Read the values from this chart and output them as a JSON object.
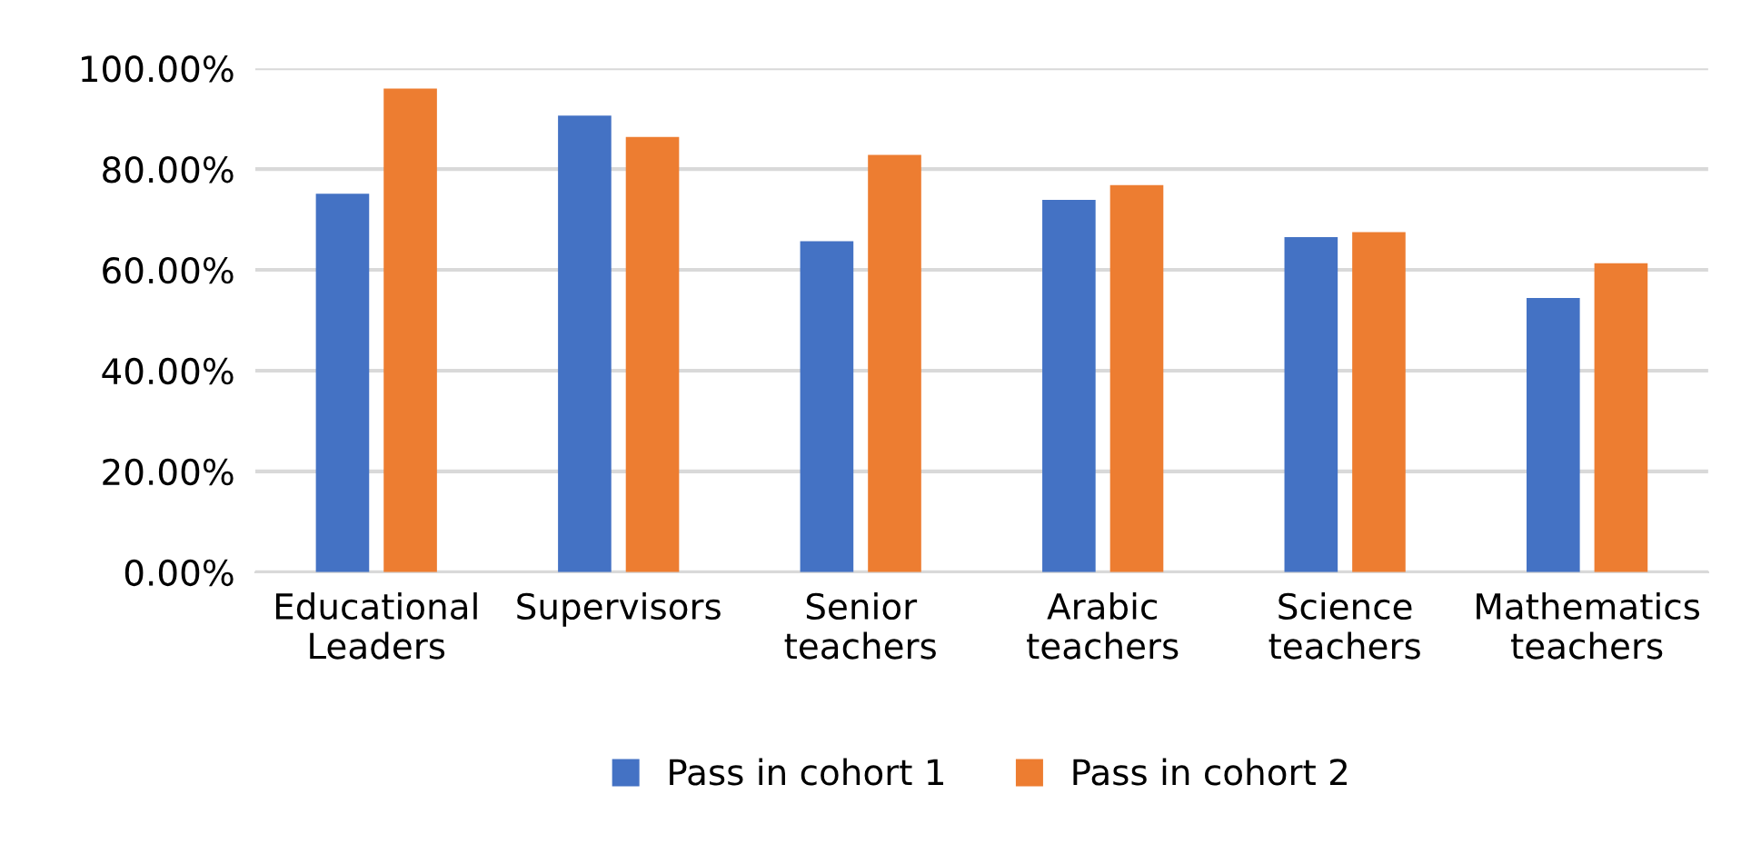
{
  "chart_data": {
    "type": "bar",
    "categories": [
      "Educational\nLeaders",
      "Supervisors",
      "Senior\nteachers",
      "Arabic\nteachers",
      "Science\nteachers",
      "Mathematics\nteachers"
    ],
    "series": [
      {
        "name": "Pass in cohort 1",
        "color": "#4472c4",
        "values": [
          75.1,
          90.6,
          65.7,
          73.9,
          66.5,
          54.4
        ]
      },
      {
        "name": "Pass in cohort 2",
        "color": "#ed7d31",
        "values": [
          96.0,
          86.4,
          82.8,
          76.8,
          67.5,
          61.3
        ]
      }
    ],
    "ylim": [
      0,
      100
    ],
    "yticks": [
      {
        "value": 0,
        "label": "0.00%"
      },
      {
        "value": 20,
        "label": "20.00%"
      },
      {
        "value": 40,
        "label": "40.00%"
      },
      {
        "value": 60,
        "label": "60.00%"
      },
      {
        "value": 80,
        "label": "80.00%"
      },
      {
        "value": 100,
        "label": "100.00%"
      }
    ],
    "grid": "y",
    "legend": "bottom"
  }
}
